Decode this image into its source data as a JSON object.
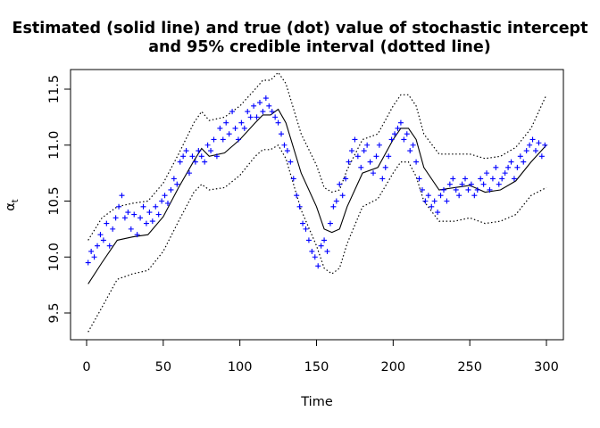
{
  "chart_data": {
    "type": "line",
    "title": "Estimated (solid line) and true (dot) value of stochastic intercept and 95% credible interval (dotted line)",
    "title_lines": [
      "Estimated (solid line) and true (dot) value of stochastic intercept",
      "and 95% credible interval (dotted line)"
    ],
    "xlabel": "Time",
    "ylabel": "α",
    "ylabel_sub": "t",
    "xlim": [
      0,
      300
    ],
    "ylim": [
      9.25,
      11.75
    ],
    "x_ticks": [
      0,
      50,
      100,
      150,
      200,
      250,
      300
    ],
    "y_ticks": [
      9.5,
      10.0,
      10.5,
      11.0,
      11.5
    ],
    "x_tick_labels": [
      "0",
      "50",
      "100",
      "150",
      "200",
      "250",
      "300"
    ],
    "y_tick_labels": [
      "9.5",
      "10.0",
      "10.5",
      "11.0",
      "11.5"
    ],
    "grid": false,
    "legend": "none",
    "colors": {
      "estimate": "#000000",
      "interval": "#000000",
      "true_points": "#0000ff"
    },
    "series": [
      {
        "role": "estimate",
        "style": "solid",
        "x": [
          1,
          10,
          20,
          30,
          40,
          50,
          60,
          70,
          75,
          80,
          90,
          100,
          110,
          115,
          120,
          125,
          130,
          140,
          150,
          155,
          160,
          165,
          170,
          180,
          190,
          200,
          205,
          210,
          215,
          220,
          230,
          240,
          250,
          260,
          270,
          280,
          290,
          300
        ],
        "y": [
          9.76,
          9.95,
          10.15,
          10.18,
          10.2,
          10.36,
          10.62,
          10.86,
          10.97,
          10.9,
          10.93,
          11.05,
          11.2,
          11.27,
          11.27,
          11.32,
          11.2,
          10.75,
          10.45,
          10.25,
          10.22,
          10.25,
          10.45,
          10.75,
          10.8,
          11.05,
          11.15,
          11.15,
          11.05,
          10.8,
          10.6,
          10.62,
          10.64,
          10.58,
          10.6,
          10.68,
          10.85,
          11.0
        ]
      },
      {
        "role": "upper-95",
        "style": "dotted",
        "x": [
          1,
          10,
          20,
          30,
          40,
          50,
          60,
          70,
          75,
          80,
          90,
          100,
          110,
          115,
          120,
          125,
          130,
          140,
          150,
          155,
          160,
          165,
          170,
          180,
          190,
          200,
          205,
          210,
          215,
          220,
          230,
          240,
          250,
          260,
          270,
          280,
          290,
          300
        ],
        "y": [
          10.15,
          10.35,
          10.45,
          10.48,
          10.5,
          10.66,
          10.92,
          11.2,
          11.3,
          11.22,
          11.25,
          11.35,
          11.5,
          11.58,
          11.58,
          11.65,
          11.55,
          11.1,
          10.82,
          10.62,
          10.58,
          10.6,
          10.78,
          11.05,
          11.1,
          11.35,
          11.45,
          11.45,
          11.35,
          11.1,
          10.92,
          10.92,
          10.92,
          10.88,
          10.9,
          10.98,
          11.15,
          11.45
        ]
      },
      {
        "role": "lower-95",
        "style": "dotted",
        "x": [
          1,
          10,
          20,
          30,
          40,
          50,
          60,
          70,
          75,
          80,
          90,
          100,
          110,
          115,
          120,
          125,
          130,
          140,
          150,
          155,
          160,
          165,
          170,
          180,
          190,
          200,
          205,
          210,
          215,
          220,
          230,
          240,
          250,
          260,
          270,
          280,
          290,
          300
        ],
        "y": [
          9.33,
          9.55,
          9.8,
          9.85,
          9.88,
          10.05,
          10.32,
          10.58,
          10.65,
          10.6,
          10.62,
          10.73,
          10.9,
          10.96,
          10.96,
          11.0,
          10.88,
          10.42,
          10.1,
          9.9,
          9.85,
          9.9,
          10.12,
          10.45,
          10.52,
          10.75,
          10.85,
          10.85,
          10.72,
          10.5,
          10.32,
          10.32,
          10.35,
          10.3,
          10.32,
          10.38,
          10.55,
          10.62
        ]
      }
    ],
    "true_points": {
      "role": "true",
      "marker": "+",
      "x": [
        1,
        3,
        5,
        7,
        9,
        11,
        13,
        15,
        17,
        19,
        21,
        23,
        25,
        27,
        29,
        31,
        33,
        35,
        37,
        39,
        41,
        43,
        45,
        47,
        49,
        51,
        53,
        55,
        57,
        59,
        61,
        63,
        65,
        67,
        69,
        71,
        73,
        75,
        77,
        79,
        81,
        83,
        85,
        87,
        89,
        91,
        93,
        95,
        97,
        99,
        101,
        103,
        105,
        107,
        109,
        111,
        113,
        115,
        117,
        119,
        121,
        123,
        125,
        127,
        129,
        131,
        133,
        135,
        137,
        139,
        141,
        143,
        145,
        147,
        149,
        151,
        153,
        155,
        157,
        159,
        161,
        163,
        165,
        167,
        169,
        171,
        173,
        175,
        177,
        179,
        181,
        183,
        185,
        187,
        189,
        191,
        193,
        195,
        197,
        199,
        201,
        203,
        205,
        207,
        209,
        211,
        213,
        215,
        217,
        219,
        221,
        223,
        225,
        227,
        229,
        231,
        233,
        235,
        237,
        239,
        241,
        243,
        245,
        247,
        249,
        251,
        253,
        255,
        257,
        259,
        261,
        263,
        265,
        267,
        269,
        271,
        273,
        275,
        277,
        279,
        281,
        283,
        285,
        287,
        289,
        291,
        293,
        295,
        297,
        299
      ],
      "y": [
        9.95,
        10.05,
        10.0,
        10.1,
        10.2,
        10.15,
        10.3,
        10.1,
        10.25,
        10.35,
        10.45,
        10.55,
        10.35,
        10.4,
        10.25,
        10.38,
        10.2,
        10.35,
        10.45,
        10.3,
        10.4,
        10.32,
        10.45,
        10.38,
        10.5,
        10.55,
        10.48,
        10.6,
        10.7,
        10.65,
        10.85,
        10.9,
        10.95,
        10.75,
        10.9,
        10.85,
        10.95,
        10.9,
        10.85,
        11.0,
        10.95,
        11.05,
        10.9,
        11.15,
        11.05,
        11.2,
        11.1,
        11.3,
        11.15,
        11.05,
        11.2,
        11.15,
        11.3,
        11.25,
        11.35,
        11.25,
        11.38,
        11.3,
        11.42,
        11.35,
        11.3,
        11.25,
        11.2,
        11.1,
        11.0,
        10.95,
        10.85,
        10.7,
        10.55,
        10.45,
        10.3,
        10.25,
        10.15,
        10.05,
        10.0,
        9.92,
        10.1,
        10.15,
        10.05,
        10.3,
        10.45,
        10.5,
        10.65,
        10.55,
        10.7,
        10.85,
        10.95,
        11.05,
        10.9,
        10.8,
        10.95,
        11.0,
        10.85,
        10.75,
        10.9,
        11.0,
        10.7,
        10.8,
        10.9,
        11.05,
        11.1,
        11.15,
        11.2,
        11.05,
        11.1,
        10.95,
        11.0,
        10.85,
        10.7,
        10.6,
        10.5,
        10.55,
        10.45,
        10.5,
        10.4,
        10.55,
        10.6,
        10.5,
        10.65,
        10.7,
        10.6,
        10.55,
        10.65,
        10.7,
        10.6,
        10.65,
        10.55,
        10.6,
        10.7,
        10.65,
        10.75,
        10.6,
        10.7,
        10.8,
        10.65,
        10.7,
        10.75,
        10.8,
        10.85,
        10.7,
        10.8,
        10.9,
        10.85,
        10.95,
        11.0,
        11.05,
        10.95,
        11.02,
        10.9,
        11.0
      ]
    }
  }
}
